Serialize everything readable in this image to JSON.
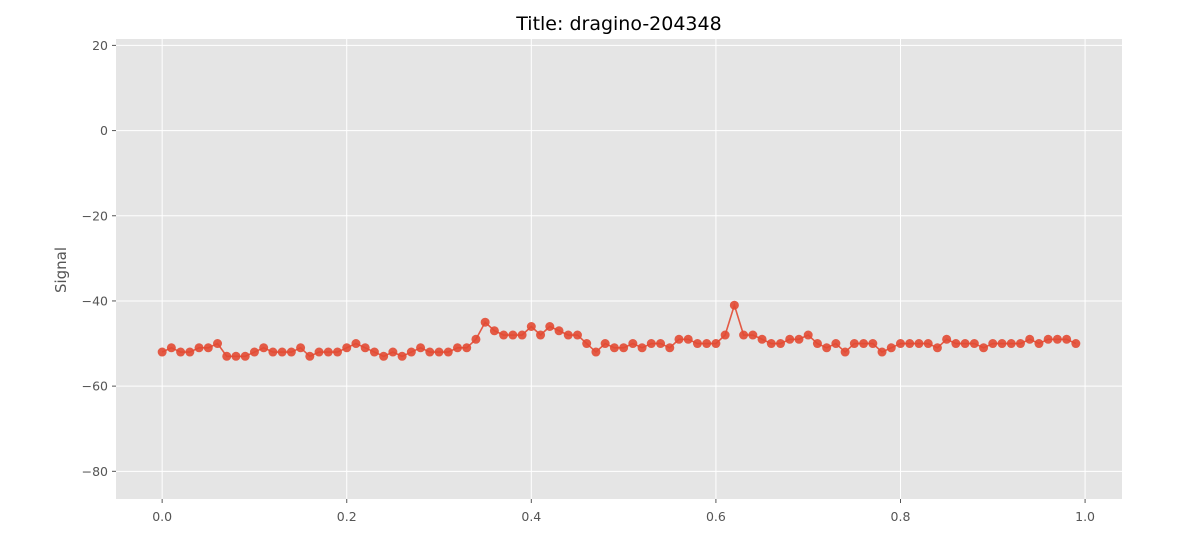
{
  "chart_data": {
    "type": "line",
    "title": "Title: dragino-204348",
    "xlabel": "",
    "ylabel": "Signal",
    "xlim": [
      -0.05,
      1.04
    ],
    "ylim": [
      -86.5,
      21.5
    ],
    "xticks": [
      0.0,
      0.2,
      0.4,
      0.6,
      0.8,
      1.0
    ],
    "xtick_labels": [
      "0.0",
      "0.2",
      "0.4",
      "0.6",
      "0.8",
      "1.0"
    ],
    "yticks": [
      20,
      0,
      -20,
      -40,
      -60,
      -80
    ],
    "ytick_labels": [
      "20",
      "0",
      "−20",
      "−40",
      "−60",
      "−80"
    ],
    "grid": true,
    "series": [
      {
        "color": "#e24a33",
        "marker": "circle",
        "x": [
          0.0,
          0.01,
          0.02,
          0.03,
          0.04,
          0.05,
          0.06,
          0.07,
          0.08,
          0.09,
          0.1,
          0.11,
          0.12,
          0.13,
          0.14,
          0.15,
          0.16,
          0.17,
          0.18,
          0.19,
          0.2,
          0.21,
          0.22,
          0.23,
          0.24,
          0.25,
          0.26,
          0.27,
          0.28,
          0.29,
          0.3,
          0.31,
          0.32,
          0.33,
          0.34,
          0.35,
          0.36,
          0.37,
          0.38,
          0.39,
          0.4,
          0.41,
          0.42,
          0.43,
          0.44,
          0.45,
          0.46,
          0.47,
          0.48,
          0.49,
          0.5,
          0.51,
          0.52,
          0.53,
          0.54,
          0.55,
          0.56,
          0.57,
          0.58,
          0.59,
          0.6,
          0.61,
          0.62,
          0.63,
          0.64,
          0.65,
          0.66,
          0.67,
          0.68,
          0.69,
          0.7,
          0.71,
          0.72,
          0.73,
          0.74,
          0.75,
          0.76,
          0.77,
          0.78,
          0.79,
          0.8,
          0.81,
          0.82,
          0.83,
          0.84,
          0.85,
          0.86,
          0.87,
          0.88,
          0.89,
          0.9,
          0.91,
          0.92,
          0.93,
          0.94,
          0.95,
          0.96,
          0.97,
          0.98,
          0.99
        ],
        "y": [
          -52,
          -51,
          -52,
          -52,
          -51,
          -51,
          -50,
          -53,
          -53,
          -53,
          -52,
          -51,
          -52,
          -52,
          -52,
          -51,
          -53,
          -52,
          -52,
          -52,
          -51,
          -50,
          -51,
          -52,
          -53,
          -52,
          -53,
          -52,
          -51,
          -52,
          -52,
          -52,
          -51,
          -51,
          -49,
          -45,
          -47,
          -48,
          -48,
          -48,
          -46,
          -48,
          -46,
          -47,
          -48,
          -48,
          -50,
          -52,
          -50,
          -51,
          -51,
          -50,
          -51,
          -50,
          -50,
          -51,
          -49,
          -49,
          -50,
          -50,
          -50,
          -48,
          -41,
          -48,
          -48,
          -49,
          -50,
          -50,
          -49,
          -49,
          -48,
          -50,
          -51,
          -50,
          -52,
          -50,
          -50,
          -50,
          -52,
          -51,
          -50,
          -50,
          -50,
          -50,
          -51,
          -49,
          -50,
          -50,
          -50,
          -51,
          -50,
          -50,
          -50,
          -50,
          -49,
          -50,
          -49,
          -49,
          -49,
          -50
        ]
      }
    ]
  },
  "colors": {
    "plot_background": "#e5e5e5",
    "grid": "#ffffff",
    "series": "#e24a33"
  }
}
